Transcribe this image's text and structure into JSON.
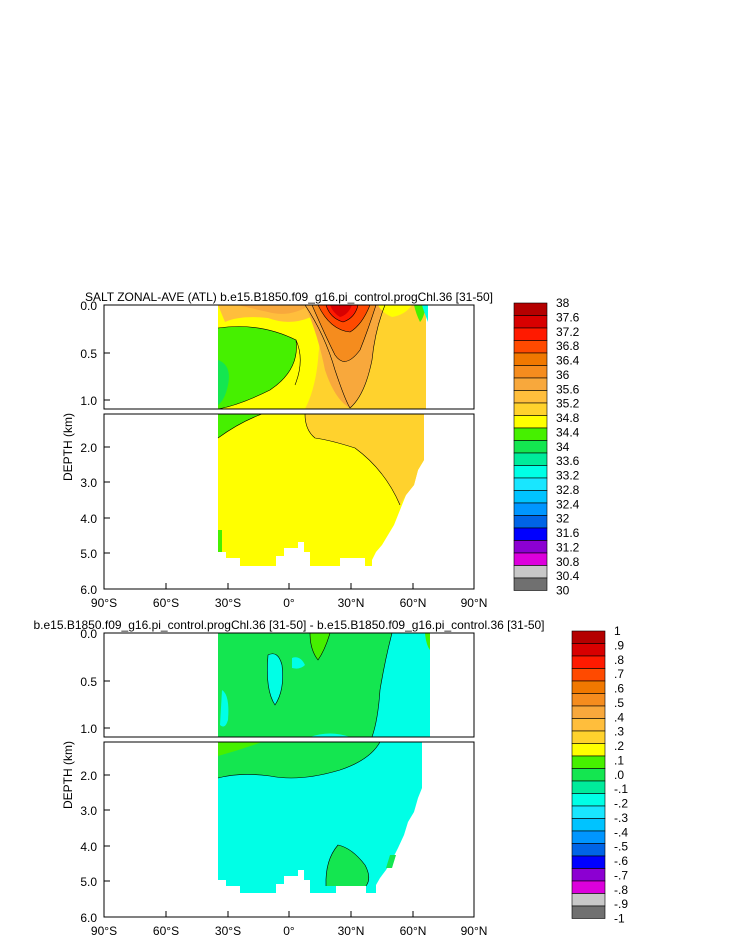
{
  "chart_data": [
    {
      "type": "contour",
      "title": "SALT ZONAL-AVE (ATL) b.e15.B1850.f09_g16.pi_control.progChl.36 [31-50]",
      "ylabel": "DEPTH (km)",
      "xticks": [
        "90°S",
        "60°S",
        "30°S",
        "0°",
        "30°N",
        "60°N",
        "90°N"
      ],
      "xlim": [
        -90,
        90
      ],
      "yticks_upper": [
        "0.0",
        "0.5",
        "1.0"
      ],
      "yticks_lower": [
        "2.0",
        "3.0",
        "4.0",
        "5.0",
        "6.0"
      ],
      "ylim": [
        0,
        6
      ],
      "split_depth_km": 1.0,
      "colorbar": {
        "levels": [
          "38",
          "37.6",
          "37.2",
          "36.8",
          "36.4",
          "36",
          "35.6",
          "35.2",
          "34.8",
          "34.4",
          "34",
          "33.6",
          "33.2",
          "32.8",
          "32.4",
          "32",
          "31.6",
          "31.2",
          "30.8",
          "30.4",
          "30"
        ],
        "colors": [
          "#b40000",
          "#d80000",
          "#ff1a00",
          "#ff4a00",
          "#f07800",
          "#f58c1e",
          "#f8a83c",
          "#ffbe3c",
          "#ffd22d",
          "#ffff00",
          "#46f000",
          "#14e650",
          "#00eb9b",
          "#00ffe6",
          "#19e6ff",
          "#00c3ff",
          "#0096ff",
          "#0064e6",
          "#0000ff",
          "#8c00d2",
          "#dc00dc",
          "#c8c8c8",
          "#707070"
        ]
      },
      "dominant_fields": [
        {
          "region": "upper 0-1 km, 30°S-10°S",
          "value_range": "34.0-34.8"
        },
        {
          "region": "upper 0-1 km, 20°N-40°N",
          "value_range": "35.6-37.2"
        },
        {
          "region": "below 1 km, 30°S-15°N",
          "value_range": "34.8-35.2"
        },
        {
          "region": "below 1 km, 15°N-65°N",
          "value_range": "35.2-35.6"
        }
      ]
    },
    {
      "type": "contour",
      "title": "b.e15.B1850.f09_g16.pi_control.progChl.36 [31-50] - b.e15.B1850.f09_g16.pi_control.36 [31-50]",
      "ylabel": "DEPTH (km)",
      "xticks": [
        "90°S",
        "60°S",
        "30°S",
        "0°",
        "30°N",
        "60°N",
        "90°N"
      ],
      "xlim": [
        -90,
        90
      ],
      "yticks_upper": [
        "0.0",
        "0.5",
        "1.0"
      ],
      "yticks_lower": [
        "2.0",
        "3.0",
        "4.0",
        "5.0",
        "6.0"
      ],
      "ylim": [
        0,
        6
      ],
      "split_depth_km": 1.0,
      "colorbar": {
        "levels": [
          "1",
          ".9",
          ".8",
          ".7",
          ".6",
          ".5",
          ".4",
          ".3",
          ".2",
          ".1",
          ".0",
          "-.1",
          "-.2",
          "-.3",
          "-.4",
          "-.5",
          "-.6",
          "-.7",
          "-.8",
          "-.9",
          "-1"
        ],
        "colors": [
          "#b40000",
          "#d80000",
          "#ff1a00",
          "#ff4a00",
          "#f07800",
          "#f58c1e",
          "#f8a83c",
          "#ffbe3c",
          "#ffd22d",
          "#ffff00",
          "#46f000",
          "#14e650",
          "#00eb9b",
          "#00ffe6",
          "#19e6ff",
          "#00c3ff",
          "#0096ff",
          "#0064e6",
          "#0000ff",
          "#8c00d2",
          "#dc00dc",
          "#c8c8c8",
          "#707070"
        ]
      },
      "dominant_fields": [
        {
          "region": "0-1 km, 30°S-40°N",
          "value_range": "0.0-0.1"
        },
        {
          "region": "deep, 30°S-65°N",
          "value_range": "-0.1-0.0"
        },
        {
          "region": "deep, 25°N-45°N near 4.5-5.5 km",
          "value_range": "0.0-0.1"
        }
      ]
    }
  ]
}
